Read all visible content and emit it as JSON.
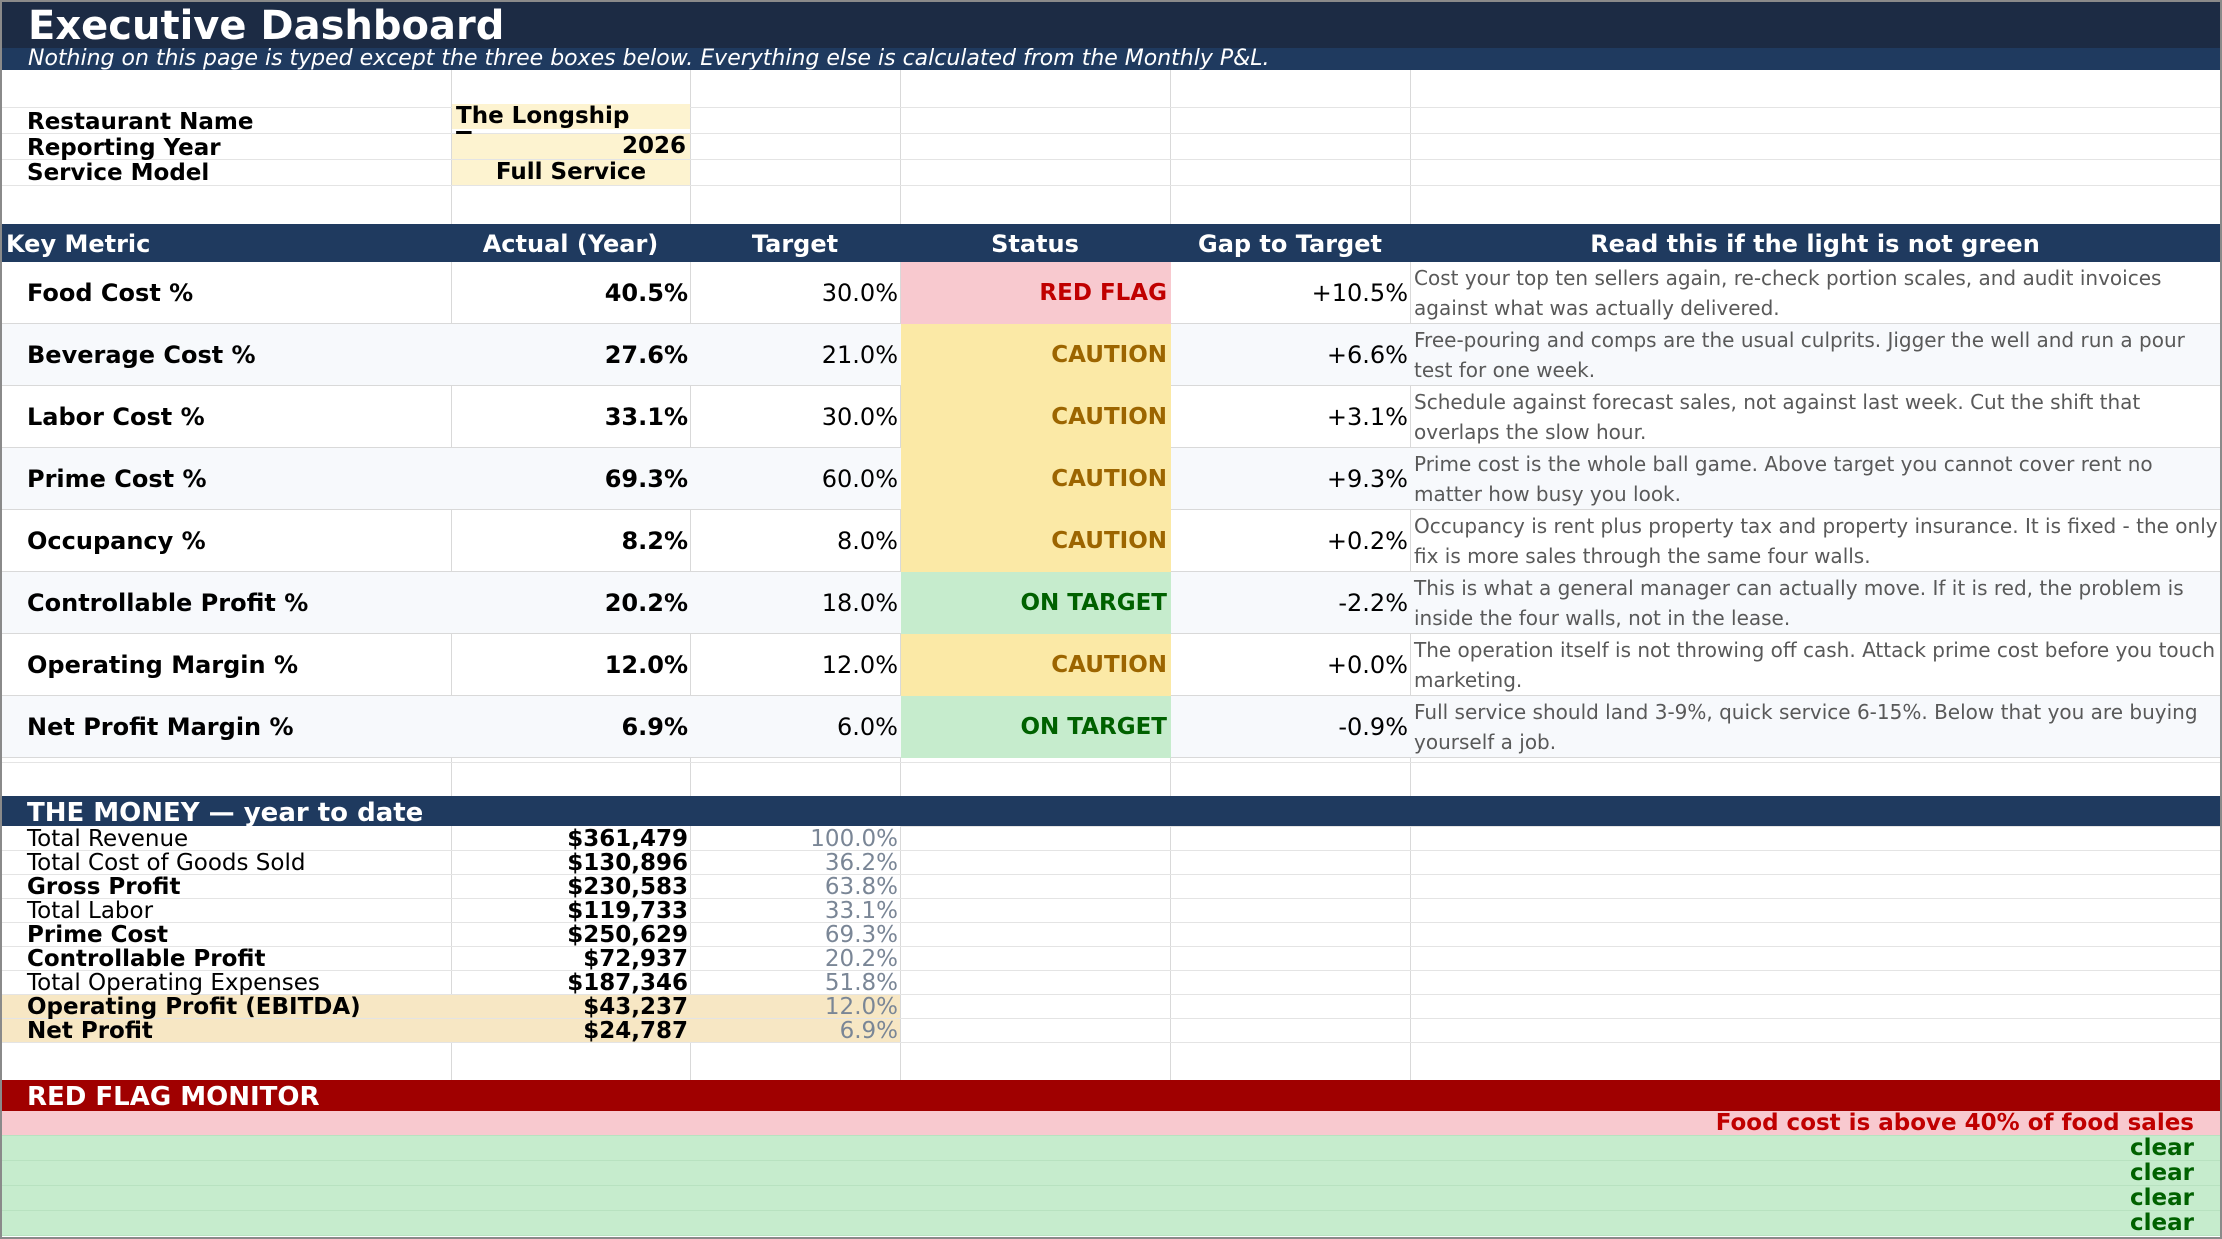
{
  "header": {
    "title": "Executive Dashboard",
    "subtitle": "Nothing on this page is typed except the three boxes below. Everything else is calculated from the Monthly P&L."
  },
  "inputs": [
    {
      "label": "Restaurant Name",
      "value": "The Longship Tavern"
    },
    {
      "label": "Reporting Year",
      "value": "2026"
    },
    {
      "label": "Service Model",
      "value": "Full Service"
    }
  ],
  "kpi_table": {
    "columns": [
      "Key Metric",
      "Actual (Year)",
      "Target",
      "Status",
      "Gap to Target",
      "Read this if the light is not green"
    ],
    "rows": [
      {
        "metric": "Food Cost %",
        "actual": "40.5%",
        "target": "30.0%",
        "status": "RED FLAG",
        "gap": "+10.5%",
        "note": "Cost your top ten sellers again, re-check portion scales, and audit invoices against what was actually delivered."
      },
      {
        "metric": "Beverage Cost %",
        "actual": "27.6%",
        "target": "21.0%",
        "status": "CAUTION",
        "gap": "+6.6%",
        "note": "Free-pouring and comps are the usual culprits. Jigger the well and run a pour test for one week."
      },
      {
        "metric": "Labor Cost %",
        "actual": "33.1%",
        "target": "30.0%",
        "status": "CAUTION",
        "gap": "+3.1%",
        "note": "Schedule against forecast sales, not against last week. Cut the shift that overlaps the slow hour."
      },
      {
        "metric": "Prime Cost %",
        "actual": "69.3%",
        "target": "60.0%",
        "status": "CAUTION",
        "gap": "+9.3%",
        "note": "Prime cost is the whole ball game. Above target you cannot cover rent no matter how busy you look."
      },
      {
        "metric": "Occupancy %",
        "actual": "8.2%",
        "target": "8.0%",
        "status": "CAUTION",
        "gap": "+0.2%",
        "note": "Occupancy is rent plus property tax and property insurance. It is fixed - the only fix is more sales through the same four walls."
      },
      {
        "metric": "Controllable Profit %",
        "actual": "20.2%",
        "target": "18.0%",
        "status": "ON TARGET",
        "gap": "-2.2%",
        "note": "This is what a general manager can actually move. If it is red, the problem is inside the four walls, not in the lease."
      },
      {
        "metric": "Operating Margin %",
        "actual": "12.0%",
        "target": "12.0%",
        "status": "CAUTION",
        "gap": "+0.0%",
        "note": "The operation itself is not throwing off cash. Attack prime cost before you touch marketing."
      },
      {
        "metric": "Net Profit Margin %",
        "actual": "6.9%",
        "target": "6.0%",
        "status": "ON TARGET",
        "gap": "-0.9%",
        "note": "Full service should land 3-9%, quick service 6-15%. Below that you are buying yourself a job."
      }
    ]
  },
  "money": {
    "title": "THE MONEY — year to date",
    "rows": [
      {
        "label": "Total Revenue",
        "value": "$361,479",
        "pct": "100.0%"
      },
      {
        "label": "Total Cost of Goods Sold",
        "value": "$130,896",
        "pct": "36.2%"
      },
      {
        "label": "Gross Profit",
        "value": "$230,583",
        "pct": "63.8%"
      },
      {
        "label": "Total Labor",
        "value": "$119,733",
        "pct": "33.1%"
      },
      {
        "label": "Prime Cost",
        "value": "$250,629",
        "pct": "69.3%"
      },
      {
        "label": "Controllable Profit",
        "value": "$72,937",
        "pct": "20.2%"
      },
      {
        "label": "Total Operating Expenses",
        "value": "$187,346",
        "pct": "51.8%"
      },
      {
        "label": "Operating Profit (EBITDA)",
        "value": "$43,237",
        "pct": "12.0%"
      },
      {
        "label": "Net Profit",
        "value": "$24,787",
        "pct": "6.9%"
      }
    ]
  },
  "red_flag_monitor": {
    "title": "RED FLAG MONITOR",
    "rows": [
      "Food cost is above 40% of food sales",
      "clear",
      "clear",
      "clear",
      "clear"
    ]
  },
  "colors": {
    "title_bar": "#1c2b44",
    "section_bar": "#1f3a5f",
    "red_flag_bar": "#a00000",
    "status_red": "#f8c9cf",
    "status_caution": "#fbe9a6",
    "status_green": "#c6eccd",
    "input_fill": "#fdf3d0",
    "highlight_row": "#f7e7c4"
  }
}
